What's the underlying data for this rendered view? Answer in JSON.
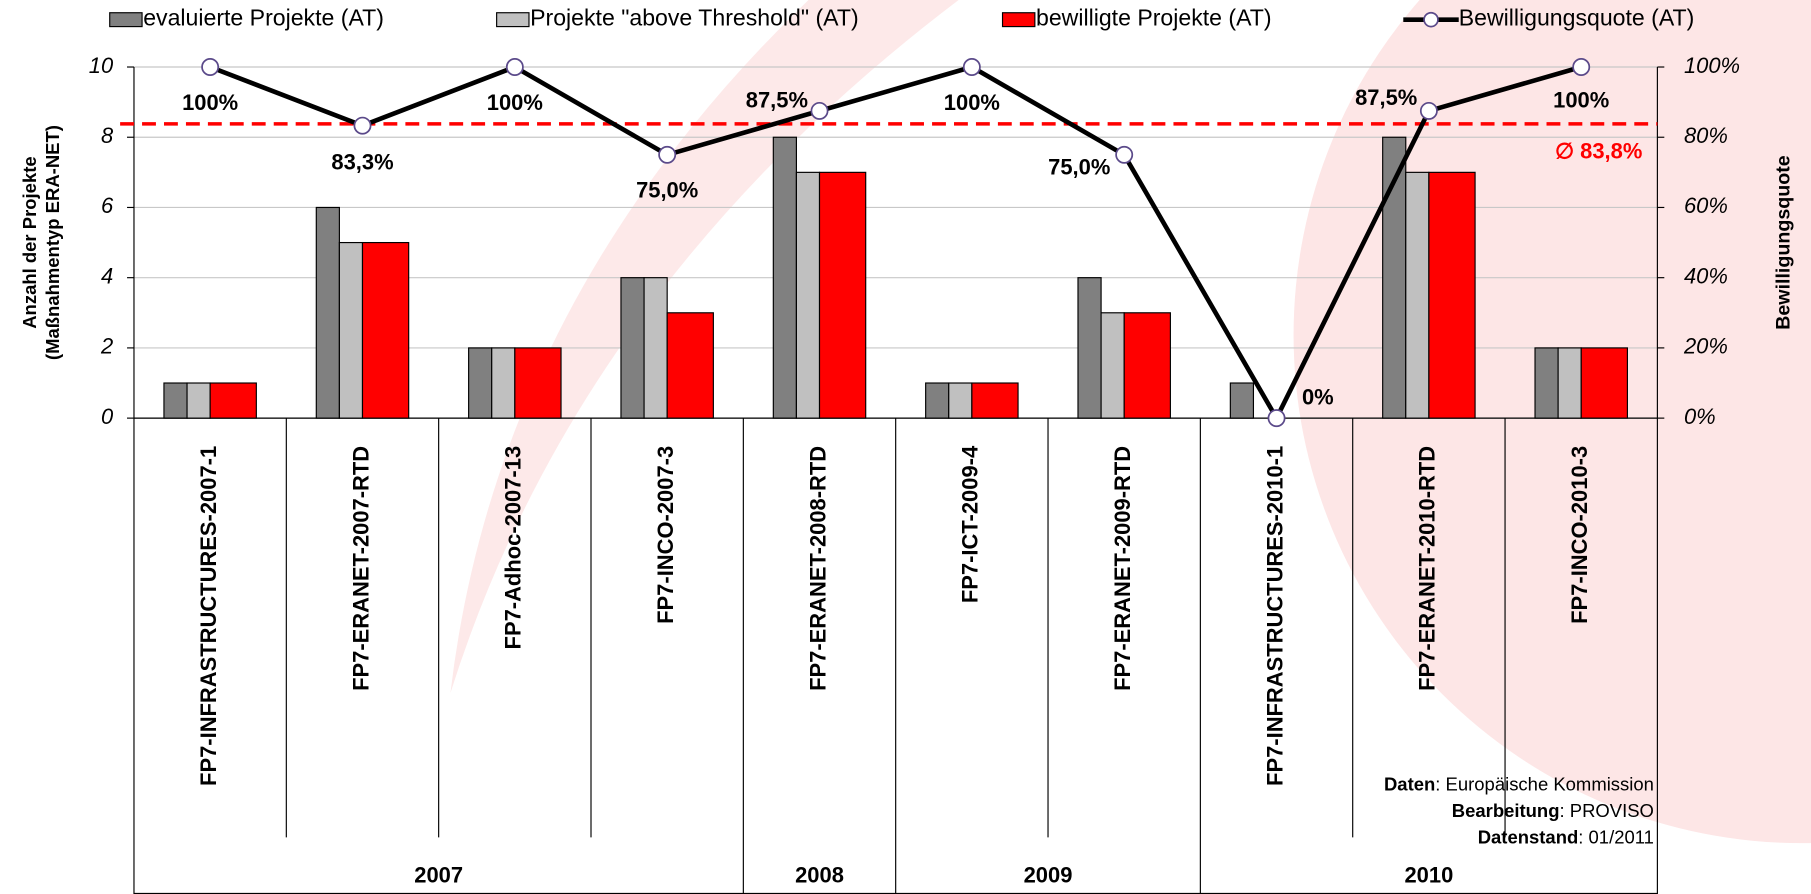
{
  "chart_data": {
    "type": "bar",
    "categories": [
      "FP7-INFRASTRUCTURES-2007-1",
      "FP7-ERANET-2007-RTD",
      "FP7-Adhoc-2007-13",
      "FP7-INCO-2007-3",
      "FP7-ERANET-2008-RTD",
      "FP7-ICT-2009-4",
      "FP7-ERANET-2009-RTD",
      "FP7-INFRASTRUCTURES-2010-1",
      "FP7-ERANET-2010-RTD",
      "FP7-INCO-2010-3"
    ],
    "groups": [
      {
        "label": "2007",
        "span": 4
      },
      {
        "label": "2008",
        "span": 1
      },
      {
        "label": "2009",
        "span": 2
      },
      {
        "label": "2010",
        "span": 3
      }
    ],
    "series": [
      {
        "name": "evaluierte Projekte (AT)",
        "color": "#808080",
        "values": [
          1,
          6,
          2,
          4,
          8,
          1,
          4,
          1,
          8,
          2
        ]
      },
      {
        "name": "Projekte \"above Threshold\" (AT)",
        "color": "#c0c0c0",
        "values": [
          1,
          5,
          2,
          4,
          7,
          1,
          3,
          0,
          7,
          2
        ]
      },
      {
        "name": "bewilligte Projekte (AT)",
        "color": "#ff0000",
        "values": [
          1,
          5,
          2,
          3,
          7,
          1,
          3,
          0,
          7,
          2
        ]
      },
      {
        "name": "Bewilligungsquote (AT)",
        "type": "line",
        "axis": "y2",
        "color": "#000000",
        "values": [
          100,
          83.3,
          100,
          75,
          87.5,
          100,
          75,
          0,
          87.5,
          100
        ],
        "value_labels": [
          "100%",
          "83,3%",
          "100%",
          "75,0%",
          "87,5%",
          "100%",
          "75,0%",
          "0%",
          "87,5%",
          "100%"
        ]
      }
    ],
    "average": {
      "value": 83.8,
      "label": "∅ 83,8%",
      "color": "#ff0000"
    },
    "ylabel": [
      "Anzahl der  Projekte",
      "(Maßnahmentyp ERA-NET)"
    ],
    "y2label": "Bewilligungsquote",
    "ylim": [
      0,
      10
    ],
    "yticks": [
      0,
      2,
      4,
      6,
      8,
      10
    ],
    "y2lim": [
      0,
      100
    ],
    "y2ticks": [
      {
        "value": 0,
        "label": "0%"
      },
      {
        "value": 20,
        "label": "20%"
      },
      {
        "value": 40,
        "label": "40%"
      },
      {
        "value": 60,
        "label": "60%"
      },
      {
        "value": 80,
        "label": "80%"
      },
      {
        "value": 100,
        "label": "100%"
      }
    ],
    "grid": true,
    "note": [
      {
        "key": "Daten",
        "text": ": Europäische Kommission"
      },
      {
        "key": "Bearbeitung",
        "text": ": PROVISO"
      },
      {
        "key": "Datenstand",
        "text": ": 01/2011"
      }
    ]
  }
}
